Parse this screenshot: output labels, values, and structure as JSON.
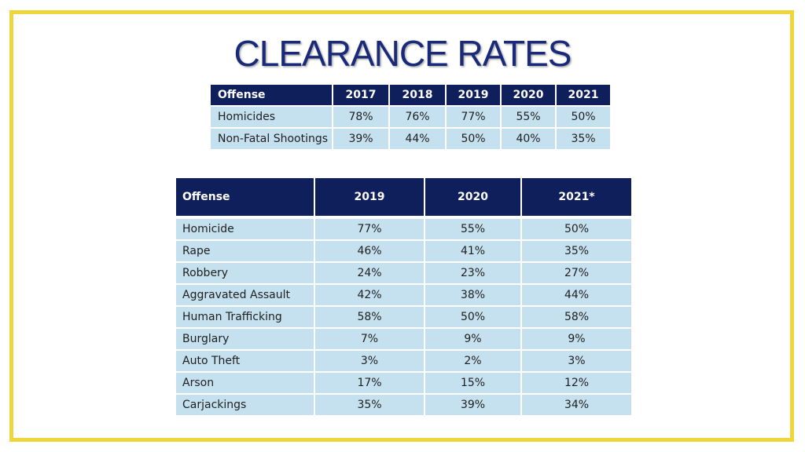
{
  "title": "CLEARANCE RATES",
  "colors": {
    "border": "#f0d63c",
    "header_bg": "#0f1f5c",
    "cell_bg": "#c5e0ef",
    "title": "#1a2a7a"
  },
  "table1": {
    "headers": [
      "Offense",
      "2017",
      "2018",
      "2019",
      "2020",
      "2021"
    ],
    "rows": [
      [
        "Homicides",
        "78%",
        "76%",
        "77%",
        "55%",
        "50%"
      ],
      [
        "Non-Fatal Shootings",
        "39%",
        "44%",
        "50%",
        "40%",
        "35%"
      ]
    ]
  },
  "table2": {
    "headers": [
      "Offense",
      "2019",
      "2020",
      "2021*"
    ],
    "rows": [
      [
        "Homicide",
        "77%",
        "55%",
        "50%"
      ],
      [
        "Rape",
        "46%",
        "41%",
        "35%"
      ],
      [
        "Robbery",
        "24%",
        "23%",
        "27%"
      ],
      [
        "Aggravated Assault",
        "42%",
        "38%",
        "44%"
      ],
      [
        "Human Trafficking",
        "58%",
        "50%",
        "58%"
      ],
      [
        "Burglary",
        "7%",
        "9%",
        "9%"
      ],
      [
        "Auto Theft",
        "3%",
        "2%",
        "3%"
      ],
      [
        "Arson",
        "17%",
        "15%",
        "12%"
      ],
      [
        "Carjackings",
        "35%",
        "39%",
        "34%"
      ]
    ]
  }
}
